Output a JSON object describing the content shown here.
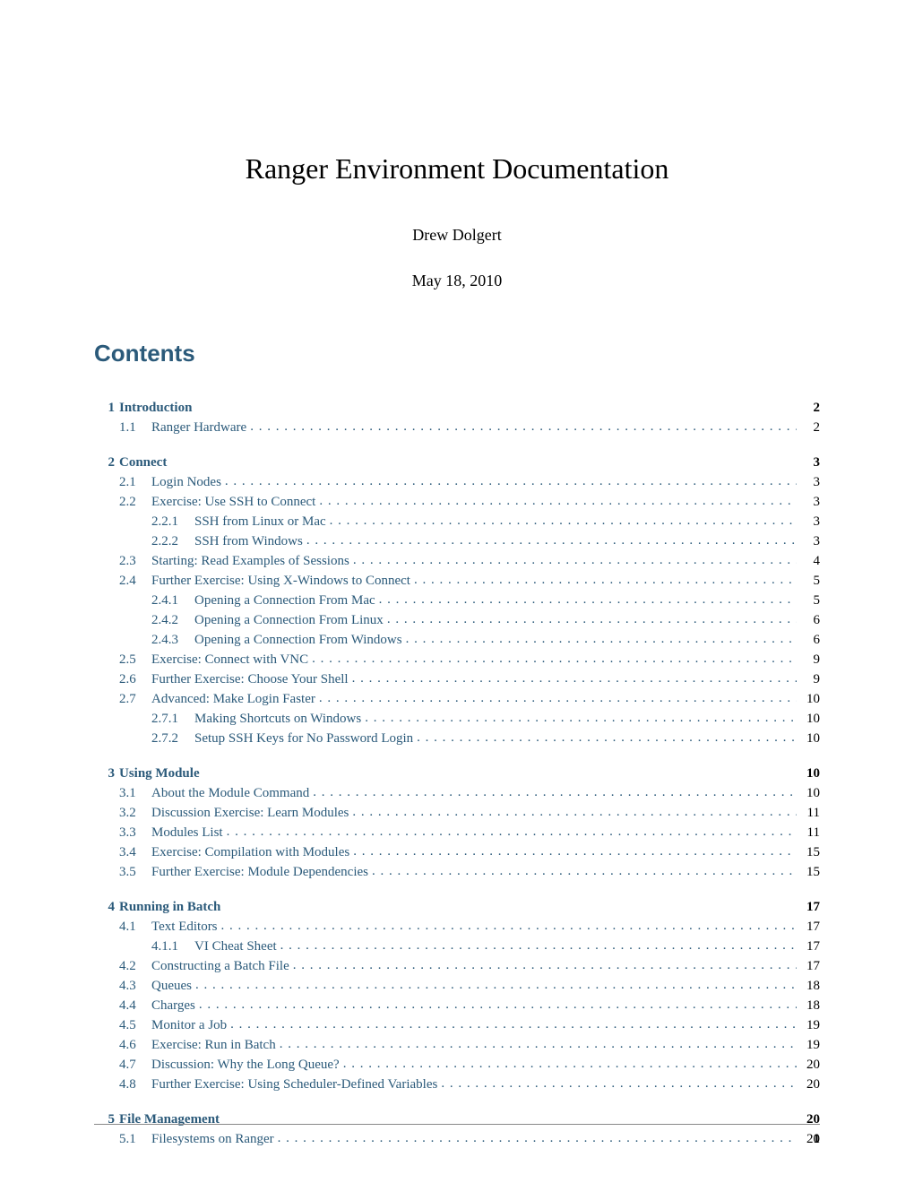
{
  "title": "Ranger Environment Documentation",
  "author": "Drew Dolgert",
  "date": "May 18, 2010",
  "contents_label": "Contents",
  "page_number": "1",
  "colors": {
    "heading": "#2b5a7a",
    "text": "#000000",
    "bg": "#ffffff"
  },
  "typography": {
    "title_size": 32,
    "heading_size": 26,
    "body_size": 15
  },
  "toc": [
    {
      "num": "1",
      "title": "Introduction",
      "page": "2",
      "subs": [
        {
          "num": "1.1",
          "title": "Ranger Hardware",
          "page": "2"
        }
      ]
    },
    {
      "num": "2",
      "title": "Connect",
      "page": "3",
      "subs": [
        {
          "num": "2.1",
          "title": "Login Nodes",
          "page": "3"
        },
        {
          "num": "2.2",
          "title": "Exercise: Use SSH to Connect",
          "page": "3",
          "subs": [
            {
              "num": "2.2.1",
              "title": "SSH from Linux or Mac",
              "page": "3"
            },
            {
              "num": "2.2.2",
              "title": "SSH from Windows",
              "page": "3"
            }
          ]
        },
        {
          "num": "2.3",
          "title": "Starting: Read Examples of Sessions",
          "page": "4"
        },
        {
          "num": "2.4",
          "title": "Further Exercise: Using X-Windows to Connect",
          "page": "5",
          "subs": [
            {
              "num": "2.4.1",
              "title": "Opening a Connection From Mac",
              "page": "5"
            },
            {
              "num": "2.4.2",
              "title": "Opening a Connection From Linux",
              "page": "6"
            },
            {
              "num": "2.4.3",
              "title": "Opening a Connection From Windows",
              "page": "6"
            }
          ]
        },
        {
          "num": "2.5",
          "title": "Exercise: Connect with VNC",
          "page": "9"
        },
        {
          "num": "2.6",
          "title": "Further Exercise: Choose Your Shell",
          "page": "9"
        },
        {
          "num": "2.7",
          "title": "Advanced: Make Login Faster",
          "page": "10",
          "subs": [
            {
              "num": "2.7.1",
              "title": "Making Shortcuts on Windows",
              "page": "10"
            },
            {
              "num": "2.7.2",
              "title": "Setup SSH Keys for No Password Login",
              "page": "10"
            }
          ]
        }
      ]
    },
    {
      "num": "3",
      "title": "Using Module",
      "page": "10",
      "subs": [
        {
          "num": "3.1",
          "title": "About the Module Command",
          "page": "10"
        },
        {
          "num": "3.2",
          "title": "Discussion Exercise: Learn Modules",
          "page": "11"
        },
        {
          "num": "3.3",
          "title": "Modules List",
          "page": "11"
        },
        {
          "num": "3.4",
          "title": "Exercise: Compilation with Modules",
          "page": "15"
        },
        {
          "num": "3.5",
          "title": "Further Exercise: Module Dependencies",
          "page": "15"
        }
      ]
    },
    {
      "num": "4",
      "title": "Running in Batch",
      "page": "17",
      "subs": [
        {
          "num": "4.1",
          "title": "Text Editors",
          "page": "17",
          "subs": [
            {
              "num": "4.1.1",
              "title": "VI Cheat Sheet",
              "page": "17"
            }
          ]
        },
        {
          "num": "4.2",
          "title": "Constructing a Batch File",
          "page": "17"
        },
        {
          "num": "4.3",
          "title": "Queues",
          "page": "18"
        },
        {
          "num": "4.4",
          "title": "Charges",
          "page": "18"
        },
        {
          "num": "4.5",
          "title": "Monitor a Job",
          "page": "19"
        },
        {
          "num": "4.6",
          "title": "Exercise: Run in Batch",
          "page": "19"
        },
        {
          "num": "4.7",
          "title": "Discussion: Why the Long Queue?",
          "page": "20"
        },
        {
          "num": "4.8",
          "title": "Further Exercise: Using Scheduler-Defined Variables",
          "page": "20"
        }
      ]
    },
    {
      "num": "5",
      "title": "File Management",
      "page": "20",
      "subs": [
        {
          "num": "5.1",
          "title": "Filesystems on Ranger",
          "page": "20"
        }
      ]
    }
  ]
}
